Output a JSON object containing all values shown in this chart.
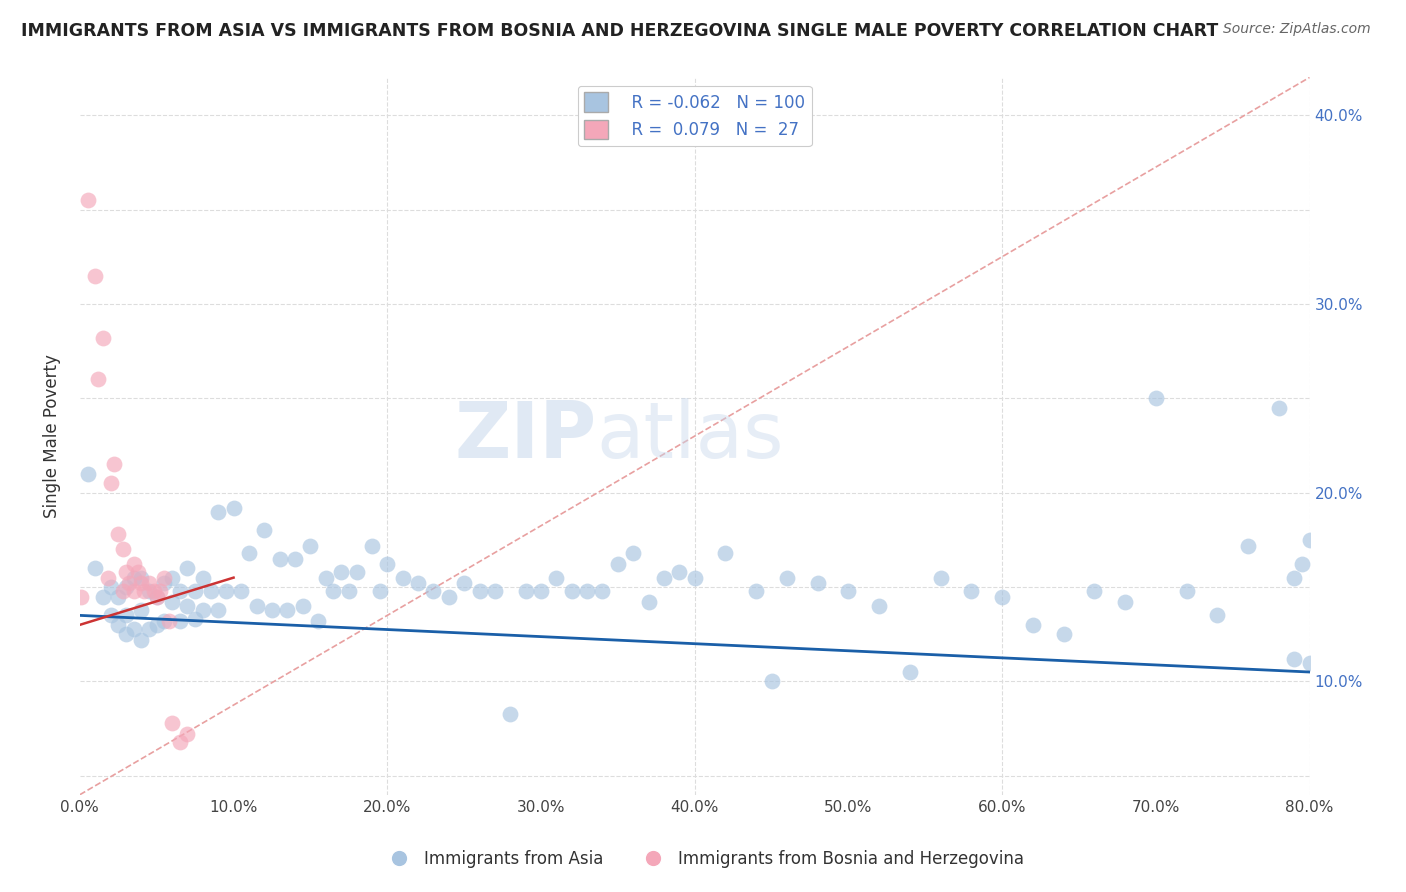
{
  "title": "IMMIGRANTS FROM ASIA VS IMMIGRANTS FROM BOSNIA AND HERZEGOVINA SINGLE MALE POVERTY CORRELATION CHART",
  "source": "Source: ZipAtlas.com",
  "ylabel": "Single Male Poverty",
  "legend_label1": "Immigrants from Asia",
  "legend_label2": "Immigrants from Bosnia and Herzegovina",
  "R1": -0.062,
  "N1": 100,
  "R2": 0.079,
  "N2": 27,
  "color1": "#a8c4e0",
  "color2": "#f4a7b9",
  "line1_color": "#1a5fa8",
  "line2_color": "#cc3333",
  "diag_color": "#e8a0a0",
  "xlim": [
    0.0,
    0.8
  ],
  "ylim": [
    0.04,
    0.42
  ],
  "xticks": [
    0.0,
    0.1,
    0.2,
    0.3,
    0.4,
    0.5,
    0.6,
    0.7,
    0.8
  ],
  "yticks": [
    0.05,
    0.1,
    0.15,
    0.2,
    0.25,
    0.3,
    0.35,
    0.4
  ],
  "background_color": "#ffffff",
  "grid_color": "#dddddd",
  "asia_x": [
    0.005,
    0.01,
    0.015,
    0.02,
    0.02,
    0.025,
    0.025,
    0.03,
    0.03,
    0.03,
    0.035,
    0.035,
    0.04,
    0.04,
    0.04,
    0.045,
    0.045,
    0.05,
    0.05,
    0.055,
    0.055,
    0.06,
    0.06,
    0.065,
    0.065,
    0.07,
    0.07,
    0.075,
    0.075,
    0.08,
    0.08,
    0.085,
    0.09,
    0.09,
    0.095,
    0.1,
    0.105,
    0.11,
    0.115,
    0.12,
    0.125,
    0.13,
    0.135,
    0.14,
    0.145,
    0.15,
    0.155,
    0.16,
    0.165,
    0.17,
    0.175,
    0.18,
    0.19,
    0.195,
    0.2,
    0.21,
    0.22,
    0.23,
    0.24,
    0.25,
    0.26,
    0.27,
    0.28,
    0.29,
    0.3,
    0.31,
    0.32,
    0.33,
    0.34,
    0.35,
    0.36,
    0.37,
    0.38,
    0.39,
    0.4,
    0.42,
    0.44,
    0.45,
    0.46,
    0.48,
    0.5,
    0.52,
    0.54,
    0.56,
    0.58,
    0.6,
    0.62,
    0.64,
    0.66,
    0.68,
    0.7,
    0.72,
    0.74,
    0.76,
    0.78,
    0.79,
    0.795,
    0.8,
    0.79,
    0.8
  ],
  "asia_y": [
    0.21,
    0.16,
    0.145,
    0.15,
    0.135,
    0.145,
    0.13,
    0.15,
    0.135,
    0.125,
    0.155,
    0.128,
    0.155,
    0.138,
    0.122,
    0.148,
    0.128,
    0.145,
    0.13,
    0.152,
    0.132,
    0.155,
    0.142,
    0.148,
    0.132,
    0.16,
    0.14,
    0.148,
    0.133,
    0.155,
    0.138,
    0.148,
    0.19,
    0.138,
    0.148,
    0.192,
    0.148,
    0.168,
    0.14,
    0.18,
    0.138,
    0.165,
    0.138,
    0.165,
    0.14,
    0.172,
    0.132,
    0.155,
    0.148,
    0.158,
    0.148,
    0.158,
    0.172,
    0.148,
    0.162,
    0.155,
    0.152,
    0.148,
    0.145,
    0.152,
    0.148,
    0.148,
    0.083,
    0.148,
    0.148,
    0.155,
    0.148,
    0.148,
    0.148,
    0.162,
    0.168,
    0.142,
    0.155,
    0.158,
    0.155,
    0.168,
    0.148,
    0.1,
    0.155,
    0.152,
    0.148,
    0.14,
    0.105,
    0.155,
    0.148,
    0.145,
    0.13,
    0.125,
    0.148,
    0.142,
    0.25,
    0.148,
    0.135,
    0.172,
    0.245,
    0.155,
    0.162,
    0.175,
    0.112,
    0.11
  ],
  "bosnia_x": [
    0.001,
    0.005,
    0.01,
    0.012,
    0.015,
    0.018,
    0.02,
    0.022,
    0.025,
    0.028,
    0.028,
    0.03,
    0.032,
    0.035,
    0.035,
    0.038,
    0.04,
    0.042,
    0.045,
    0.048,
    0.05,
    0.052,
    0.055,
    0.058,
    0.06,
    0.065,
    0.07
  ],
  "bosnia_y": [
    0.145,
    0.355,
    0.315,
    0.26,
    0.282,
    0.155,
    0.205,
    0.215,
    0.178,
    0.17,
    0.148,
    0.158,
    0.152,
    0.162,
    0.148,
    0.158,
    0.152,
    0.148,
    0.152,
    0.148,
    0.145,
    0.148,
    0.155,
    0.132,
    0.078,
    0.068,
    0.072
  ],
  "watermark_zip": "ZIP",
  "watermark_atlas": "atlas"
}
